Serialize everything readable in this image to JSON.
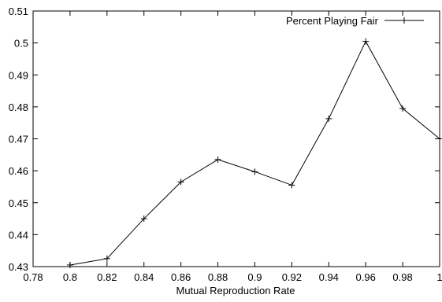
{
  "chart_data": {
    "type": "line",
    "title": "",
    "xlabel": "Mutual Reproduction Rate",
    "ylabel": "",
    "xlim": [
      0.78,
      1.0
    ],
    "ylim": [
      0.43,
      0.51
    ],
    "xticks": [
      0.78,
      0.8,
      0.82,
      0.84,
      0.86,
      0.88,
      0.9,
      0.92,
      0.94,
      0.96,
      0.98,
      1
    ],
    "xtick_labels": [
      "0.78",
      "0.8",
      "0.82",
      "0.84",
      "0.86",
      "0.88",
      "0.9",
      "0.92",
      "0.94",
      "0.96",
      "0.98",
      "1"
    ],
    "yticks": [
      0.43,
      0.44,
      0.45,
      0.46,
      0.47,
      0.48,
      0.49,
      0.5,
      0.51
    ],
    "ytick_labels": [
      "0.43",
      "0.44",
      "0.45",
      "0.46",
      "0.47",
      "0.48",
      "0.49",
      "0.5",
      "0.51"
    ],
    "grid": false,
    "legend_position": "top-right",
    "series": [
      {
        "name": "Percent Playing Fair",
        "color": "#000000",
        "marker": "plus",
        "x": [
          0.8,
          0.82,
          0.84,
          0.86,
          0.88,
          0.9,
          0.92,
          0.94,
          0.96,
          0.98,
          1.0
        ],
        "y": [
          0.4305,
          0.4325,
          0.445,
          0.4565,
          0.4635,
          0.4597,
          0.4555,
          0.4763,
          0.5005,
          0.4795,
          0.47
        ]
      }
    ]
  }
}
